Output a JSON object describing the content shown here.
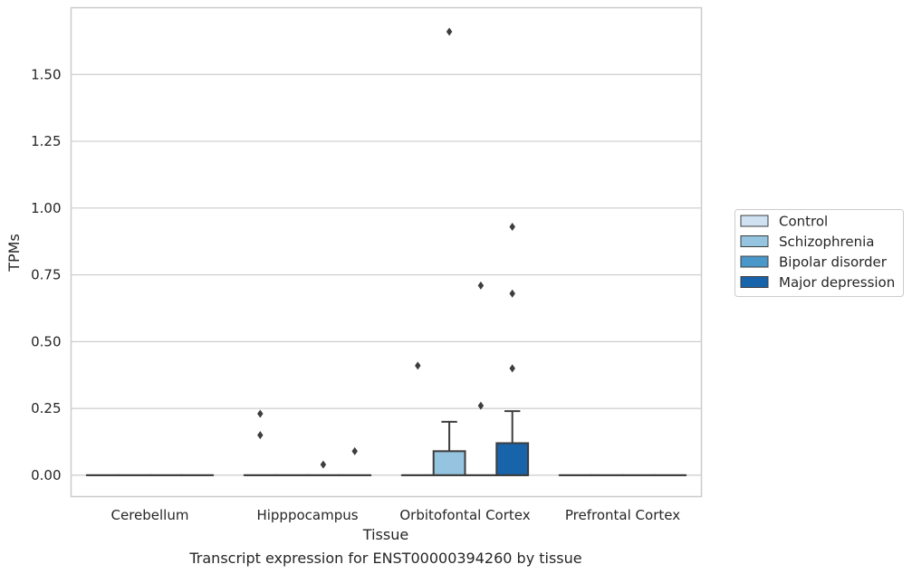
{
  "chart_data": {
    "type": "box",
    "title": "Transcript expression for ENST00000394260 by tissue",
    "xlabel": "Tissue",
    "ylabel": "TPMs",
    "ylim": [
      -0.08,
      1.75
    ],
    "yticks": [
      "0.00",
      "0.25",
      "0.50",
      "0.75",
      "1.00",
      "1.25",
      "1.50"
    ],
    "categories": [
      "Cerebellum",
      "Hipppocampus",
      "Orbitofontal Cortex",
      "Prefrontal Cortex"
    ],
    "grid": true,
    "legend_position": "right",
    "series": [
      {
        "name": "Control",
        "color": "#d0e1f2",
        "boxes": [
          {
            "q1": 0,
            "median": 0,
            "q3": 0,
            "whisker_low": 0,
            "whisker_high": 0,
            "outliers": []
          },
          {
            "q1": 0,
            "median": 0,
            "q3": 0,
            "whisker_low": 0,
            "whisker_high": 0,
            "outliers": [
              0.23,
              0.15
            ]
          },
          {
            "q1": 0,
            "median": 0,
            "q3": 0,
            "whisker_low": 0,
            "whisker_high": 0,
            "outliers": [
              0.41
            ]
          },
          {
            "q1": 0,
            "median": 0,
            "q3": 0,
            "whisker_low": 0,
            "whisker_high": 0,
            "outliers": []
          }
        ]
      },
      {
        "name": "Schizophrenia",
        "color": "#94c4df",
        "boxes": [
          {
            "q1": 0,
            "median": 0,
            "q3": 0,
            "whisker_low": 0,
            "whisker_high": 0,
            "outliers": []
          },
          {
            "q1": 0,
            "median": 0,
            "q3": 0,
            "whisker_low": 0,
            "whisker_high": 0,
            "outliers": []
          },
          {
            "q1": 0,
            "median": 0,
            "q3": 0.09,
            "whisker_low": 0,
            "whisker_high": 0.2,
            "outliers": [
              1.66
            ]
          },
          {
            "q1": 0,
            "median": 0,
            "q3": 0,
            "whisker_low": 0,
            "whisker_high": 0,
            "outliers": []
          }
        ]
      },
      {
        "name": "Bipolar disorder",
        "color": "#4a98c9",
        "boxes": [
          {
            "q1": 0,
            "median": 0,
            "q3": 0,
            "whisker_low": 0,
            "whisker_high": 0,
            "outliers": []
          },
          {
            "q1": 0,
            "median": 0,
            "q3": 0,
            "whisker_low": 0,
            "whisker_high": 0,
            "outliers": [
              0.04
            ]
          },
          {
            "q1": 0,
            "median": 0,
            "q3": 0,
            "whisker_low": 0,
            "whisker_high": 0,
            "outliers": [
              0.71,
              0.26
            ]
          },
          {
            "q1": 0,
            "median": 0,
            "q3": 0,
            "whisker_low": 0,
            "whisker_high": 0,
            "outliers": []
          }
        ]
      },
      {
        "name": "Major depression",
        "color": "#1764ab",
        "boxes": [
          {
            "q1": 0,
            "median": 0,
            "q3": 0,
            "whisker_low": 0,
            "whisker_high": 0,
            "outliers": []
          },
          {
            "q1": 0,
            "median": 0,
            "q3": 0,
            "whisker_low": 0,
            "whisker_high": 0,
            "outliers": [
              0.09
            ]
          },
          {
            "q1": 0,
            "median": 0,
            "q3": 0.12,
            "whisker_low": 0,
            "whisker_high": 0.24,
            "outliers": [
              0.93,
              0.68,
              0.4
            ]
          },
          {
            "q1": 0,
            "median": 0,
            "q3": 0,
            "whisker_low": 0,
            "whisker_high": 0,
            "outliers": []
          }
        ]
      }
    ]
  }
}
